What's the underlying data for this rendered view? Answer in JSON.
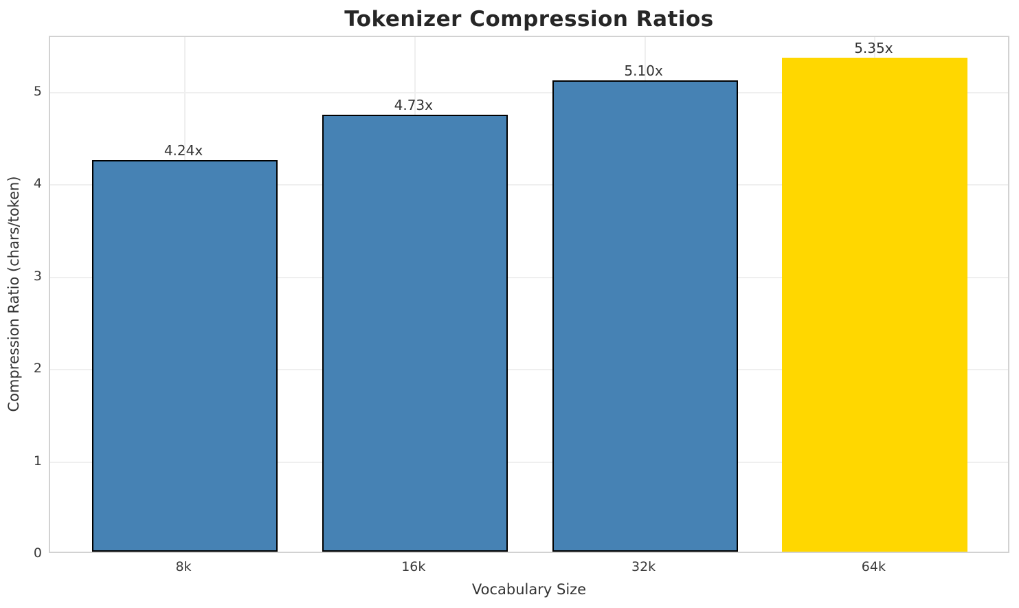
{
  "chart_data": {
    "type": "bar",
    "title": "Tokenizer Compression Ratios",
    "xlabel": "Vocabulary Size",
    "ylabel": "Compression Ratio (chars/token)",
    "categories": [
      "8k",
      "16k",
      "32k",
      "64k"
    ],
    "values": [
      4.24,
      4.73,
      5.1,
      5.35
    ],
    "bar_labels": [
      "4.24x",
      "4.73x",
      "5.10x",
      "5.35x"
    ],
    "y_ticks": [
      0,
      1,
      2,
      3,
      4,
      5
    ],
    "ylim": [
      0,
      5.6
    ],
    "grid": true,
    "legend": "none",
    "highlight_index": 3,
    "colors": {
      "bar_default": "#4682B4",
      "bar_highlight": "#FFD700",
      "bar_edge": "#000000",
      "gridline": "#efefef",
      "spine": "#d2d2d2",
      "title_text": "#262626",
      "label_text": "#333333",
      "tick_text": "#3a3a3a"
    }
  }
}
